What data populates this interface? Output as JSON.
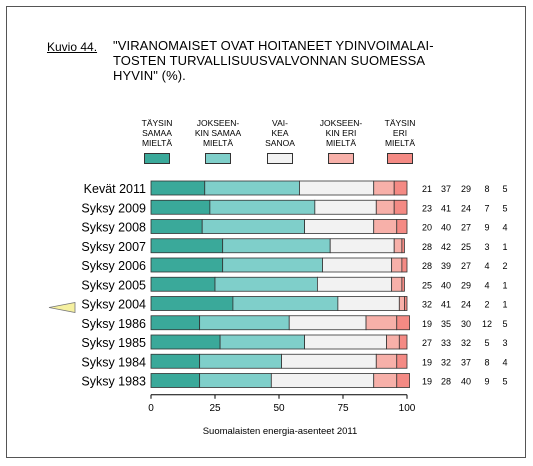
{
  "figure_label": "Kuvio 44.",
  "title": "\"VIRANOMAISET OVAT HOITANEET YDINVOIMALAI-\nTOSTEN TURVALLISUUSVALVONNAN SUOMESSA\nHYVIN\" (%).",
  "source": "Suomalaisten energia-asenteet 2011",
  "colors": {
    "segments": [
      "#3aa99a",
      "#7fcfca",
      "#f2f2f2",
      "#f7b0a9",
      "#f48a84"
    ],
    "outline": "#333333",
    "marker": "#f5f0a0"
  },
  "legend": [
    {
      "label": "TÄYSIN\nSAMAA\nMIELTÄ"
    },
    {
      "label": "JOKSEEN-\nKIN SAMAA\nMIELTÄ"
    },
    {
      "label": "VAI-\nKEA\nSANOA"
    },
    {
      "label": "JOKSEEN-\nKIN ERI\nMIELTÄ"
    },
    {
      "label": "TÄYSIN\nERI\nMIELTÄ"
    }
  ],
  "chart_data": {
    "type": "bar",
    "orientation": "horizontal",
    "stacked": true,
    "xlim": [
      0,
      100
    ],
    "xticks": [
      "0",
      "25",
      "50",
      "75",
      "100"
    ],
    "categories": [
      "Kevät 2011",
      "Syksy 2009",
      "Syksy 2008",
      "Syksy 2007",
      "Syksy 2006",
      "Syksy 2005",
      "Syksy 2004",
      "Syksy 1986",
      "Syksy 1985",
      "Syksy 1984",
      "Syksy 1983"
    ],
    "highlighted_category": "Syksy 2004",
    "series": [
      {
        "name": "TÄYSIN SAMAA MIELTÄ",
        "values": [
          21,
          23,
          20,
          28,
          28,
          25,
          32,
          19,
          27,
          19,
          19
        ]
      },
      {
        "name": "JOKSEEN-KIN SAMAA MIELTÄ",
        "values": [
          37,
          41,
          40,
          42,
          39,
          40,
          41,
          35,
          33,
          32,
          28
        ]
      },
      {
        "name": "VAI-KEA SANOA",
        "values": [
          29,
          24,
          27,
          25,
          27,
          29,
          24,
          30,
          32,
          37,
          40
        ]
      },
      {
        "name": "JOKSEEN-KIN ERI MIELTÄ",
        "values": [
          8,
          7,
          9,
          3,
          4,
          4,
          2,
          12,
          5,
          8,
          9
        ]
      },
      {
        "name": "TÄYSIN ERI MIELTÄ",
        "values": [
          5,
          5,
          4,
          1,
          2,
          1,
          1,
          5,
          3,
          4,
          5
        ]
      }
    ],
    "grid": false,
    "legend_position": "top"
  }
}
